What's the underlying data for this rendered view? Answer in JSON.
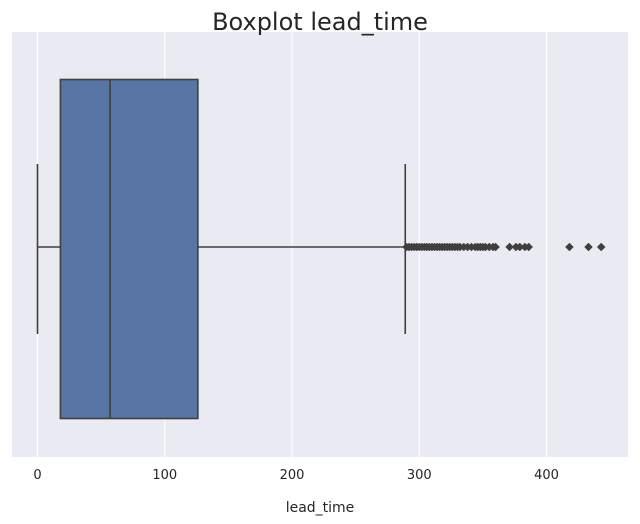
{
  "chart_data": {
    "type": "box",
    "title": "Boxplot lead_time",
    "xlabel": "lead_time",
    "ylabel": "",
    "xlim": [
      -20,
      463
    ],
    "x_ticks": [
      0,
      100,
      200,
      300,
      400
    ],
    "x_tick_labels": [
      "0",
      "100",
      "200",
      "300",
      "400"
    ],
    "grid": true,
    "orientation": "horizontal",
    "box": {
      "min": 0,
      "q1": 18,
      "median": 57,
      "q3": 126,
      "max": 289
    },
    "outliers": [
      290,
      292,
      294,
      296,
      298,
      300,
      302,
      304,
      306,
      308,
      310,
      312,
      314,
      316,
      318,
      320,
      322,
      324,
      326,
      328,
      330,
      332,
      335,
      338,
      341,
      344,
      346,
      348,
      350,
      352,
      355,
      358,
      360,
      371,
      376,
      379,
      383,
      386,
      418,
      433,
      443
    ],
    "colors": {
      "background": "#eaeaf2",
      "grid": "#ffffff",
      "box_fill": "#5975a4",
      "lines": "#3f3f3f"
    }
  }
}
